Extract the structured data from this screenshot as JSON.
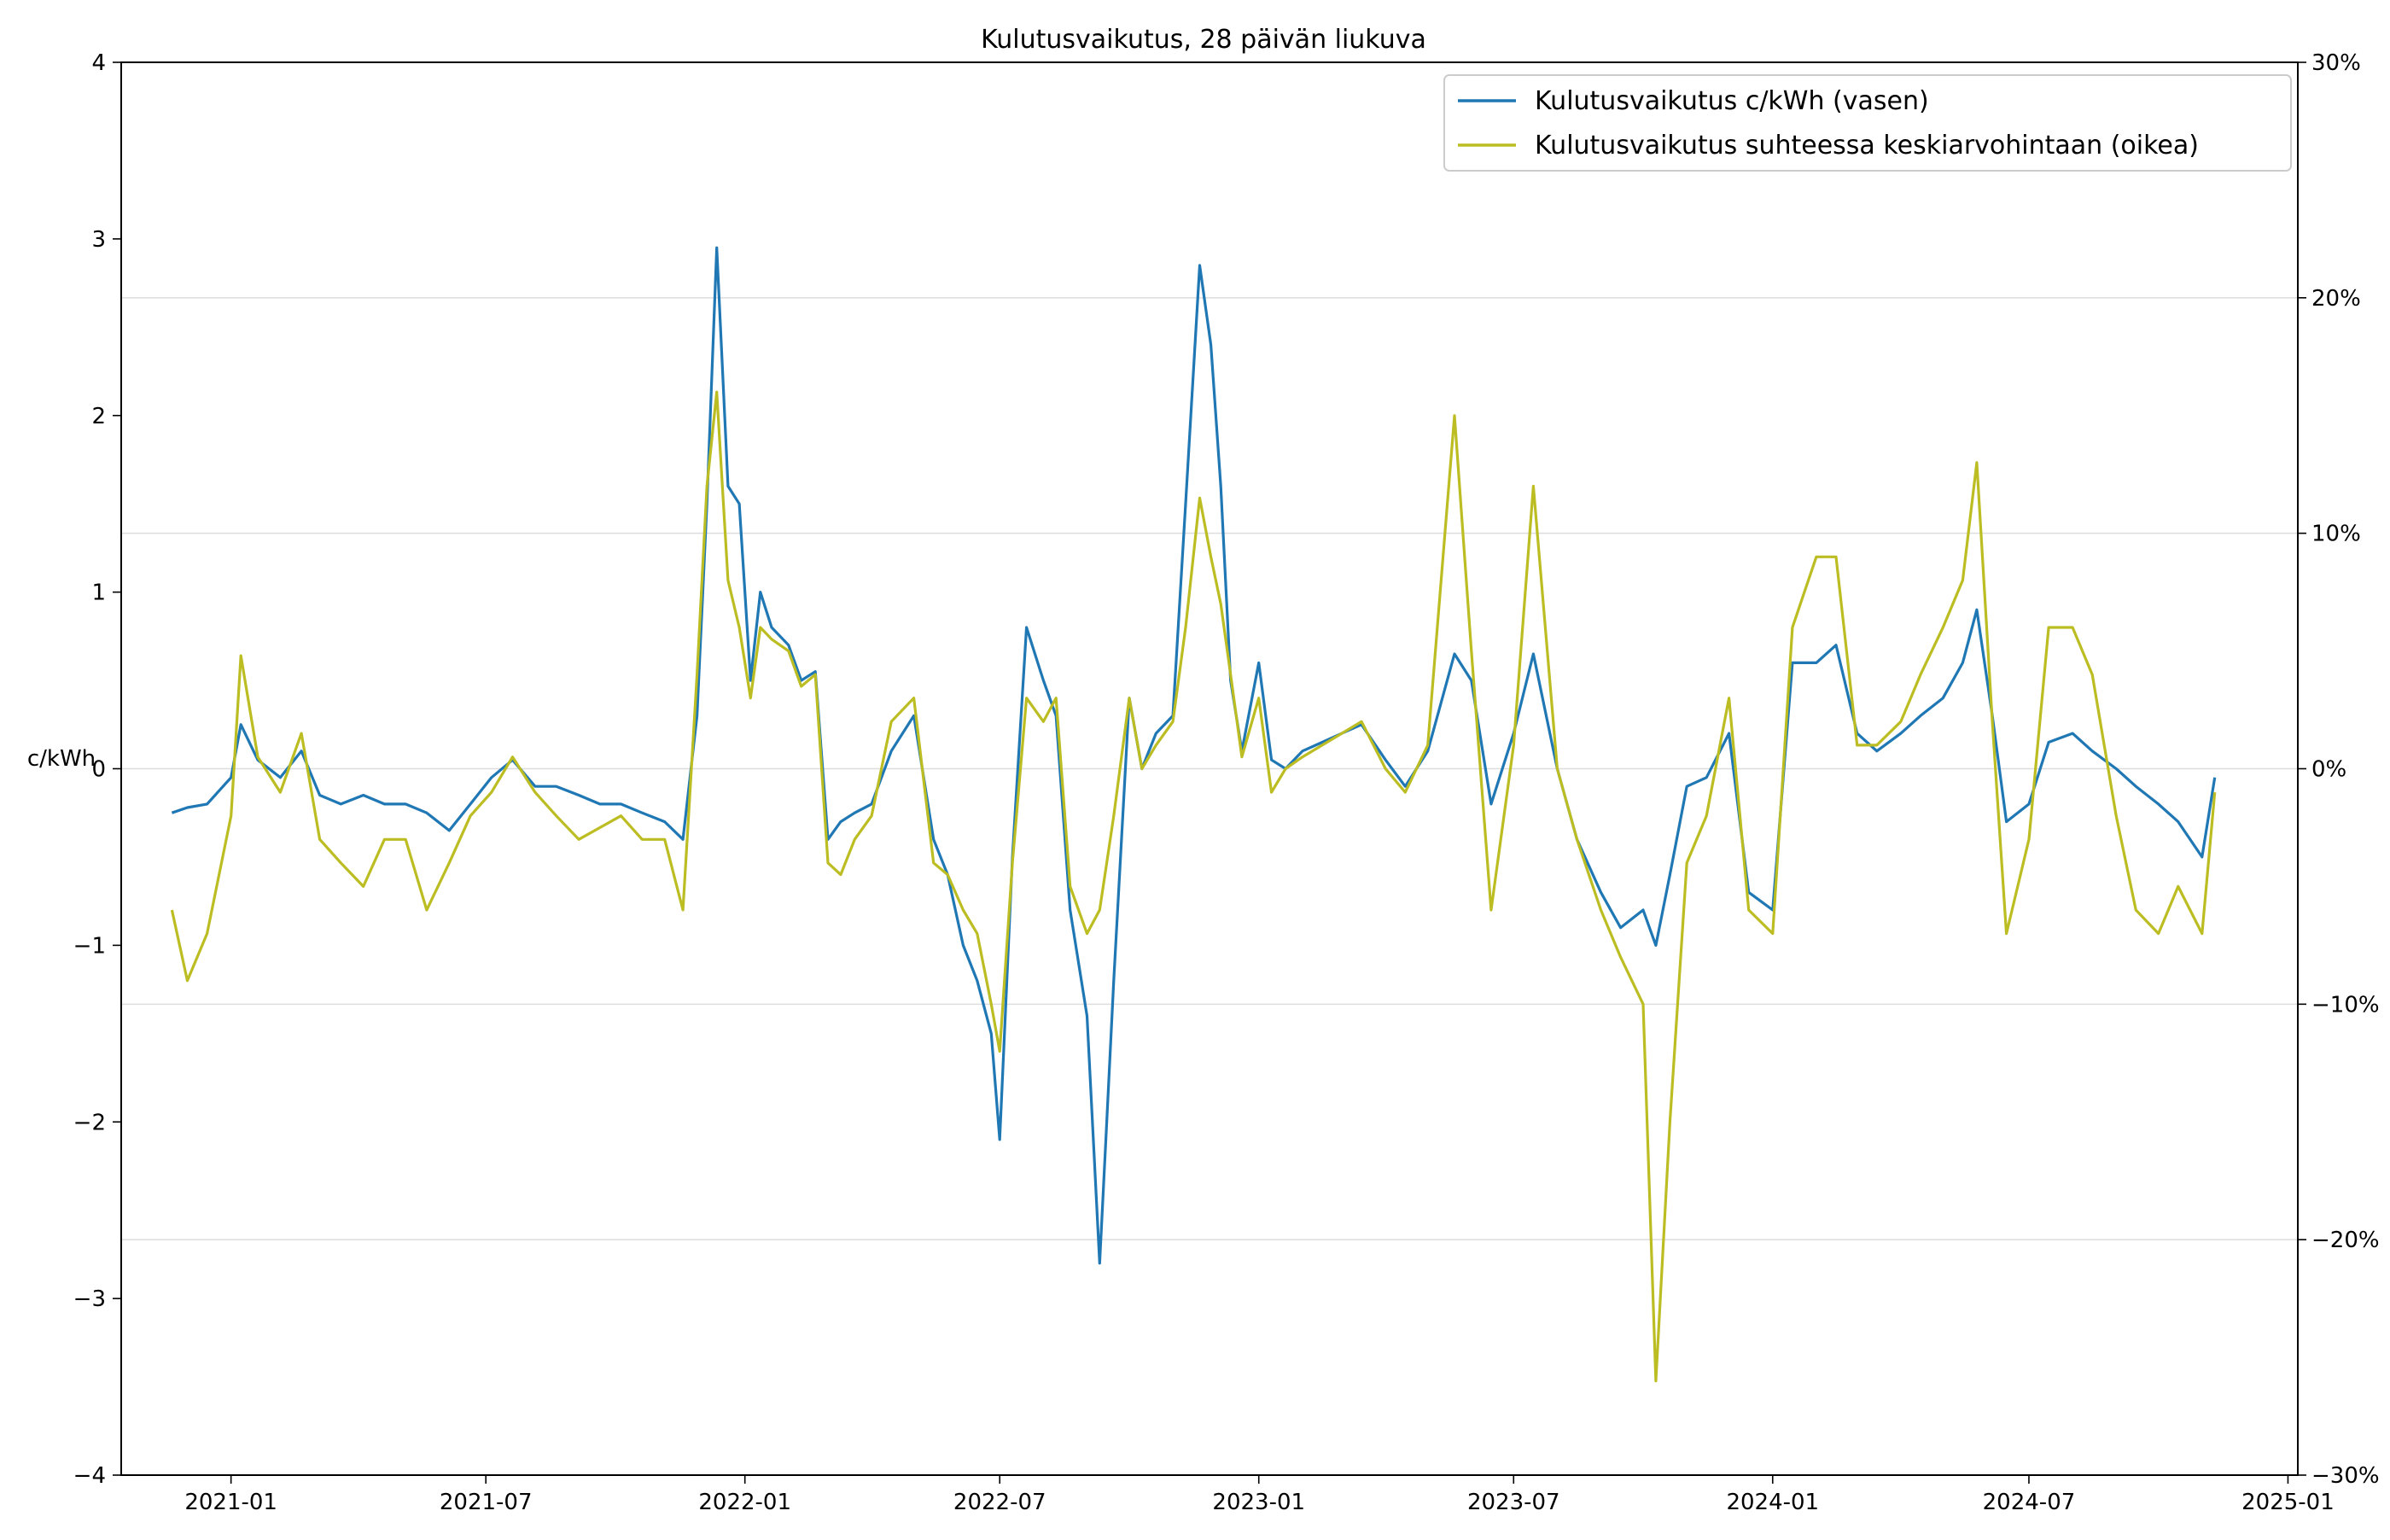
{
  "chart_data": {
    "type": "line",
    "title": "Kulutusvaikutus, 28 päivän liukuva",
    "ylabel_left": "c/kWh",
    "ylabel_right": "",
    "xlabel": "",
    "ylim_left": [
      -4,
      4
    ],
    "ylim_right": [
      -30,
      30
    ],
    "xlim": [
      "2020-10-15",
      "2025-01-08"
    ],
    "x_ticks": [
      "2021-01",
      "2021-07",
      "2022-01",
      "2022-07",
      "2023-01",
      "2023-07",
      "2024-01",
      "2024-07",
      "2025-01"
    ],
    "y_ticks_left": [
      "−4",
      "−3",
      "−2",
      "−1",
      "0",
      "1",
      "2",
      "3",
      "4"
    ],
    "y_ticks_right": [
      "−30%",
      "−20%",
      "−10%",
      "0%",
      "10%",
      "20%",
      "30%"
    ],
    "grid": "horizontal (right axis)",
    "legend_position": "upper right",
    "series": [
      {
        "name": "Kulutusvaikutus c/kWh (vasen)",
        "axis": "left",
        "color": "#1f77b4",
        "x": [
          "2020-11-20",
          "2020-12-01",
          "2020-12-15",
          "2021-01-01",
          "2021-01-08",
          "2021-01-20",
          "2021-02-05",
          "2021-02-20",
          "2021-03-05",
          "2021-03-20",
          "2021-04-05",
          "2021-04-20",
          "2021-05-05",
          "2021-05-20",
          "2021-06-05",
          "2021-06-20",
          "2021-07-05",
          "2021-07-20",
          "2021-08-05",
          "2021-08-20",
          "2021-09-05",
          "2021-09-20",
          "2021-10-05",
          "2021-10-20",
          "2021-11-05",
          "2021-11-18",
          "2021-11-28",
          "2021-12-05",
          "2021-12-12",
          "2021-12-20",
          "2021-12-28",
          "2022-01-05",
          "2022-01-12",
          "2022-01-20",
          "2022-02-01",
          "2022-02-10",
          "2022-02-20",
          "2022-03-01",
          "2022-03-10",
          "2022-03-20",
          "2022-04-01",
          "2022-04-15",
          "2022-05-01",
          "2022-05-15",
          "2022-05-25",
          "2022-06-05",
          "2022-06-15",
          "2022-06-25",
          "2022-07-01",
          "2022-07-10",
          "2022-07-20",
          "2022-08-01",
          "2022-08-10",
          "2022-08-20",
          "2022-09-01",
          "2022-09-10",
          "2022-09-15",
          "2022-09-20",
          "2022-10-01",
          "2022-10-10",
          "2022-10-20",
          "2022-11-01",
          "2022-11-10",
          "2022-11-20",
          "2022-11-28",
          "2022-12-05",
          "2022-12-12",
          "2022-12-20",
          "2023-01-01",
          "2023-01-10",
          "2023-01-20",
          "2023-02-01",
          "2023-02-15",
          "2023-03-01",
          "2023-03-15",
          "2023-04-01",
          "2023-04-15",
          "2023-05-01",
          "2023-05-20",
          "2023-06-01",
          "2023-06-15",
          "2023-07-01",
          "2023-07-15",
          "2023-08-01",
          "2023-08-15",
          "2023-09-01",
          "2023-09-15",
          "2023-10-01",
          "2023-10-10",
          "2023-10-20",
          "2023-11-01",
          "2023-11-15",
          "2023-12-01",
          "2023-12-15",
          "2024-01-01",
          "2024-01-15",
          "2024-02-01",
          "2024-02-15",
          "2024-03-01",
          "2024-03-15",
          "2024-04-01",
          "2024-04-15",
          "2024-05-01",
          "2024-05-15",
          "2024-05-25",
          "2024-06-05",
          "2024-06-15",
          "2024-07-01",
          "2024-07-15",
          "2024-08-01",
          "2024-08-15",
          "2024-09-01",
          "2024-09-15",
          "2024-10-01",
          "2024-10-15",
          "2024-11-01",
          "2024-11-10"
        ],
        "y": [
          -0.25,
          -0.22,
          -0.2,
          -0.05,
          0.25,
          0.05,
          -0.05,
          0.1,
          -0.15,
          -0.2,
          -0.15,
          -0.2,
          -0.2,
          -0.25,
          -0.35,
          -0.2,
          -0.05,
          0.05,
          -0.1,
          -0.1,
          -0.15,
          -0.2,
          -0.2,
          -0.25,
          -0.3,
          -0.4,
          0.3,
          1.5,
          2.95,
          1.6,
          1.5,
          0.5,
          1.0,
          0.8,
          0.7,
          0.5,
          0.55,
          -0.4,
          -0.3,
          -0.25,
          -0.2,
          0.1,
          0.3,
          -0.4,
          -0.6,
          -1.0,
          -1.2,
          -1.5,
          -2.1,
          -0.5,
          0.8,
          0.5,
          0.3,
          -0.8,
          -1.4,
          -2.8,
          -2.0,
          -1.2,
          0.4,
          0.0,
          0.2,
          0.3,
          1.5,
          2.85,
          2.4,
          1.6,
          0.5,
          0.1,
          0.6,
          0.05,
          0.0,
          0.1,
          0.15,
          0.2,
          0.25,
          0.05,
          -0.1,
          0.1,
          0.65,
          0.5,
          -0.2,
          0.2,
          0.65,
          0.0,
          -0.4,
          -0.7,
          -0.9,
          -0.8,
          -1.0,
          -0.6,
          -0.1,
          -0.05,
          0.2,
          -0.7,
          -0.8,
          0.6,
          0.6,
          0.7,
          0.2,
          0.1,
          0.2,
          0.3,
          0.4,
          0.6,
          0.9,
          0.3,
          -0.3,
          -0.2,
          0.15,
          0.2,
          0.1,
          0.0,
          -0.1,
          -0.2,
          -0.3,
          -0.5,
          -0.05
        ]
      },
      {
        "name": "Kulutusvaikutus suhteessa keskiarvohintaan (oikea)",
        "axis": "right",
        "color": "#bcbd22",
        "x": [
          "2020-11-20",
          "2020-12-01",
          "2020-12-15",
          "2021-01-01",
          "2021-01-08",
          "2021-01-20",
          "2021-02-05",
          "2021-02-20",
          "2021-03-05",
          "2021-03-20",
          "2021-04-05",
          "2021-04-20",
          "2021-05-05",
          "2021-05-20",
          "2021-06-05",
          "2021-06-20",
          "2021-07-05",
          "2021-07-20",
          "2021-08-05",
          "2021-08-20",
          "2021-09-05",
          "2021-09-20",
          "2021-10-05",
          "2021-10-20",
          "2021-11-05",
          "2021-11-18",
          "2021-11-28",
          "2021-12-05",
          "2021-12-12",
          "2021-12-20",
          "2021-12-28",
          "2022-01-05",
          "2022-01-12",
          "2022-01-20",
          "2022-02-01",
          "2022-02-10",
          "2022-02-20",
          "2022-03-01",
          "2022-03-10",
          "2022-03-20",
          "2022-04-01",
          "2022-04-15",
          "2022-05-01",
          "2022-05-15",
          "2022-05-25",
          "2022-06-05",
          "2022-06-15",
          "2022-06-25",
          "2022-07-01",
          "2022-07-10",
          "2022-07-20",
          "2022-08-01",
          "2022-08-10",
          "2022-08-20",
          "2022-09-01",
          "2022-09-10",
          "2022-09-15",
          "2022-09-20",
          "2022-10-01",
          "2022-10-10",
          "2022-10-20",
          "2022-11-01",
          "2022-11-10",
          "2022-11-20",
          "2022-11-28",
          "2022-12-05",
          "2022-12-12",
          "2022-12-20",
          "2023-01-01",
          "2023-01-10",
          "2023-01-20",
          "2023-02-01",
          "2023-02-15",
          "2023-03-01",
          "2023-03-15",
          "2023-04-01",
          "2023-04-15",
          "2023-05-01",
          "2023-05-20",
          "2023-06-01",
          "2023-06-15",
          "2023-07-01",
          "2023-07-15",
          "2023-08-01",
          "2023-08-15",
          "2023-09-01",
          "2023-09-15",
          "2023-10-01",
          "2023-10-10",
          "2023-10-20",
          "2023-11-01",
          "2023-11-15",
          "2023-12-01",
          "2023-12-15",
          "2024-01-01",
          "2024-01-15",
          "2024-02-01",
          "2024-02-15",
          "2024-03-01",
          "2024-03-15",
          "2024-04-01",
          "2024-04-15",
          "2024-05-01",
          "2024-05-15",
          "2024-05-25",
          "2024-06-05",
          "2024-06-15",
          "2024-07-01",
          "2024-07-15",
          "2024-08-01",
          "2024-08-15",
          "2024-09-01",
          "2024-09-15",
          "2024-10-01",
          "2024-10-15",
          "2024-11-01",
          "2024-11-10"
        ],
        "y": [
          -6.0,
          -9.0,
          -7.0,
          -2.0,
          4.8,
          0.5,
          -1.0,
          1.5,
          -3.0,
          -4.0,
          -5.0,
          -3.0,
          -3.0,
          -6.0,
          -4.0,
          -2.0,
          -1.0,
          0.5,
          -1.0,
          -2.0,
          -3.0,
          -2.5,
          -2.0,
          -3.0,
          -3.0,
          -6.0,
          4.0,
          12.0,
          16.0,
          8.0,
          6.0,
          3.0,
          6.0,
          5.5,
          5.0,
          3.5,
          4.0,
          -4.0,
          -4.5,
          -3.0,
          -2.0,
          2.0,
          3.0,
          -4.0,
          -4.5,
          -6.0,
          -7.0,
          -10.0,
          -12.0,
          -4.0,
          3.0,
          2.0,
          3.0,
          -5.0,
          -7.0,
          -6.0,
          -4.0,
          -2.0,
          3.0,
          0.0,
          1.0,
          2.0,
          6.0,
          11.5,
          9.0,
          7.0,
          4.0,
          0.5,
          3.0,
          -1.0,
          0.0,
          0.5,
          1.0,
          1.5,
          2.0,
          0.0,
          -1.0,
          1.0,
          15.0,
          5.0,
          -6.0,
          1.0,
          12.0,
          0.0,
          -3.0,
          -6.0,
          -8.0,
          -10.0,
          -26.0,
          -15.0,
          -4.0,
          -2.0,
          3.0,
          -6.0,
          -7.0,
          6.0,
          9.0,
          9.0,
          1.0,
          1.0,
          2.0,
          4.0,
          6.0,
          8.0,
          13.0,
          2.0,
          -7.0,
          -3.0,
          6.0,
          6.0,
          4.0,
          -2.0,
          -6.0,
          -7.0,
          -5.0,
          -7.0,
          -1.0
        ]
      }
    ]
  }
}
